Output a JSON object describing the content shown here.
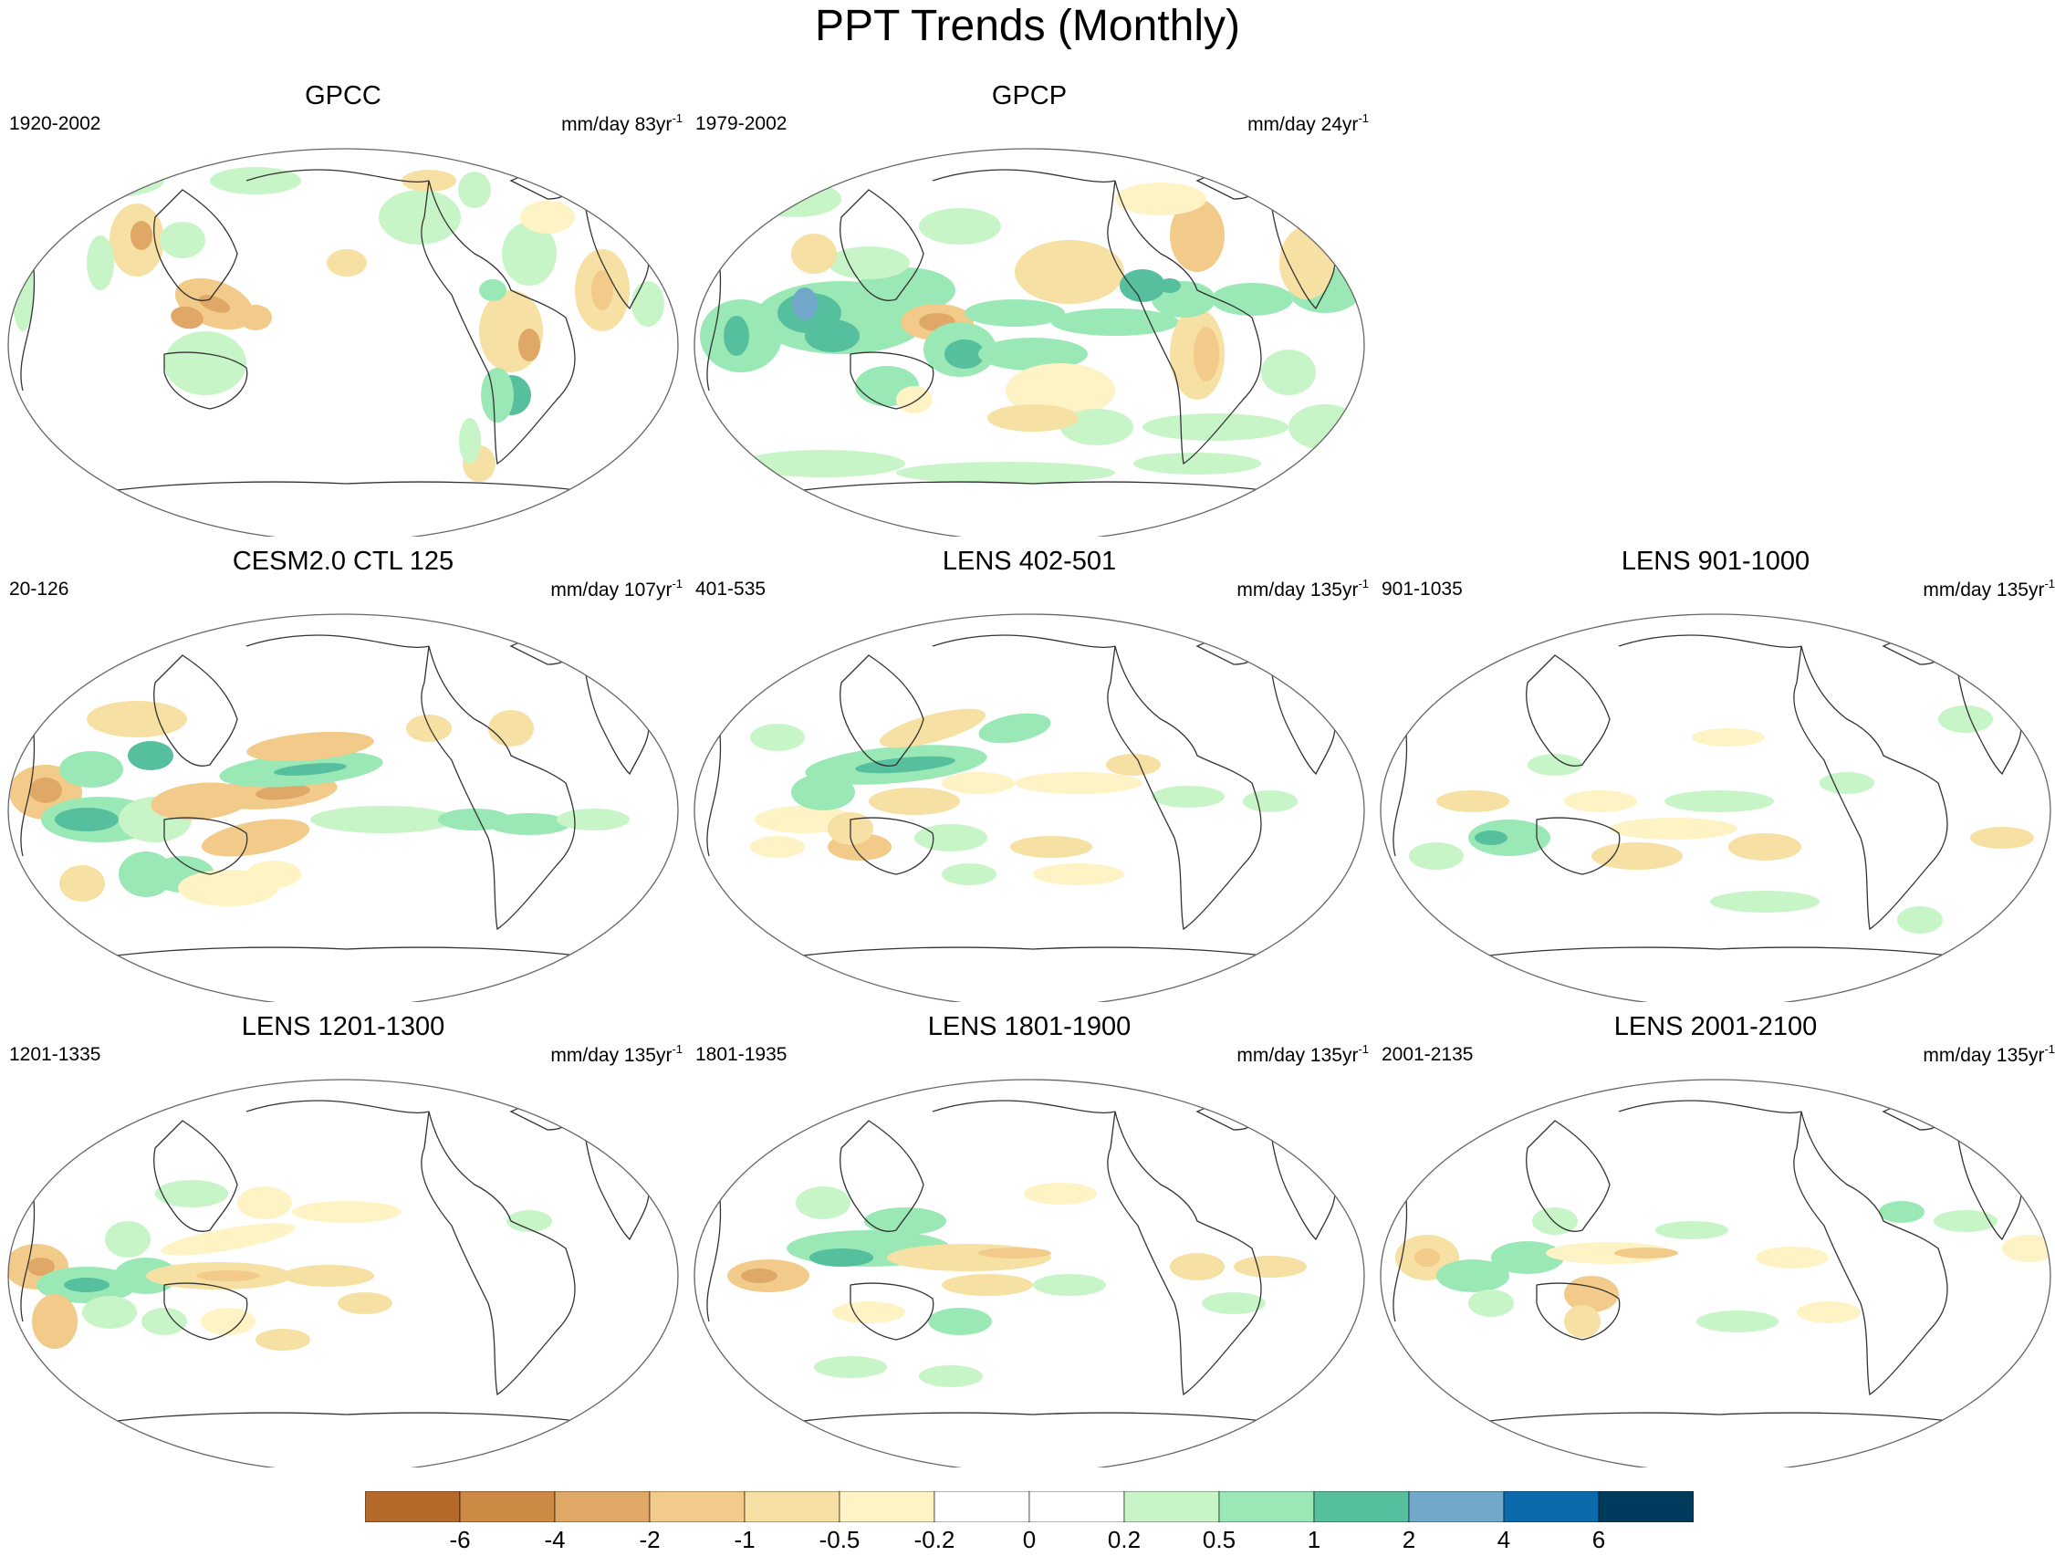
{
  "title": "PPT Trends (Monthly)",
  "panels": [
    {
      "title": "GPCC",
      "period": "1920-2002",
      "units": "mm/day",
      "length": "83yr",
      "exp": "-1",
      "pattern": "gpcc"
    },
    {
      "title": "GPCP",
      "period": "1979-2002",
      "units": "mm/day",
      "length": "24yr",
      "exp": "-1",
      "pattern": "gpcp"
    },
    {
      "title": "CESM2.0 CTL 125",
      "period": "20-126",
      "units": "mm/day",
      "length": "107yr",
      "exp": "-1",
      "pattern": "cesm"
    },
    {
      "title": "LENS 402-501",
      "period": "401-535",
      "units": "mm/day",
      "length": "135yr",
      "exp": "-1",
      "pattern": "lens402"
    },
    {
      "title": "LENS 901-1000",
      "period": "901-1035",
      "units": "mm/day",
      "length": "135yr",
      "exp": "-1",
      "pattern": "lens901"
    },
    {
      "title": "LENS 1201-1300",
      "period": "1201-1335",
      "units": "mm/day",
      "length": "135yr",
      "exp": "-1",
      "pattern": "lens1201"
    },
    {
      "title": "LENS 1801-1900",
      "period": "1801-1935",
      "units": "mm/day",
      "length": "135yr",
      "exp": "-1",
      "pattern": "lens1801"
    },
    {
      "title": "LENS 2001-2100",
      "period": "2001-2135",
      "units": "mm/day",
      "length": "135yr",
      "exp": "-1",
      "pattern": "lens2001"
    }
  ],
  "colorbar": {
    "colors": [
      "#b5692a",
      "#cc8a45",
      "#e0a867",
      "#f2cb8a",
      "#f7e0a3",
      "#fdf3c4",
      "#ffffff",
      "#ffffff",
      "#c8f5c7",
      "#9ae8b6",
      "#55bf9e",
      "#72a8c9",
      "#0b6aab",
      "#003a5c"
    ],
    "labels": [
      "-6",
      "-4",
      "-2",
      "-1",
      "-0.5",
      "-0.2",
      "0",
      "0.2",
      "0.5",
      "1",
      "2",
      "4",
      "6"
    ]
  }
}
